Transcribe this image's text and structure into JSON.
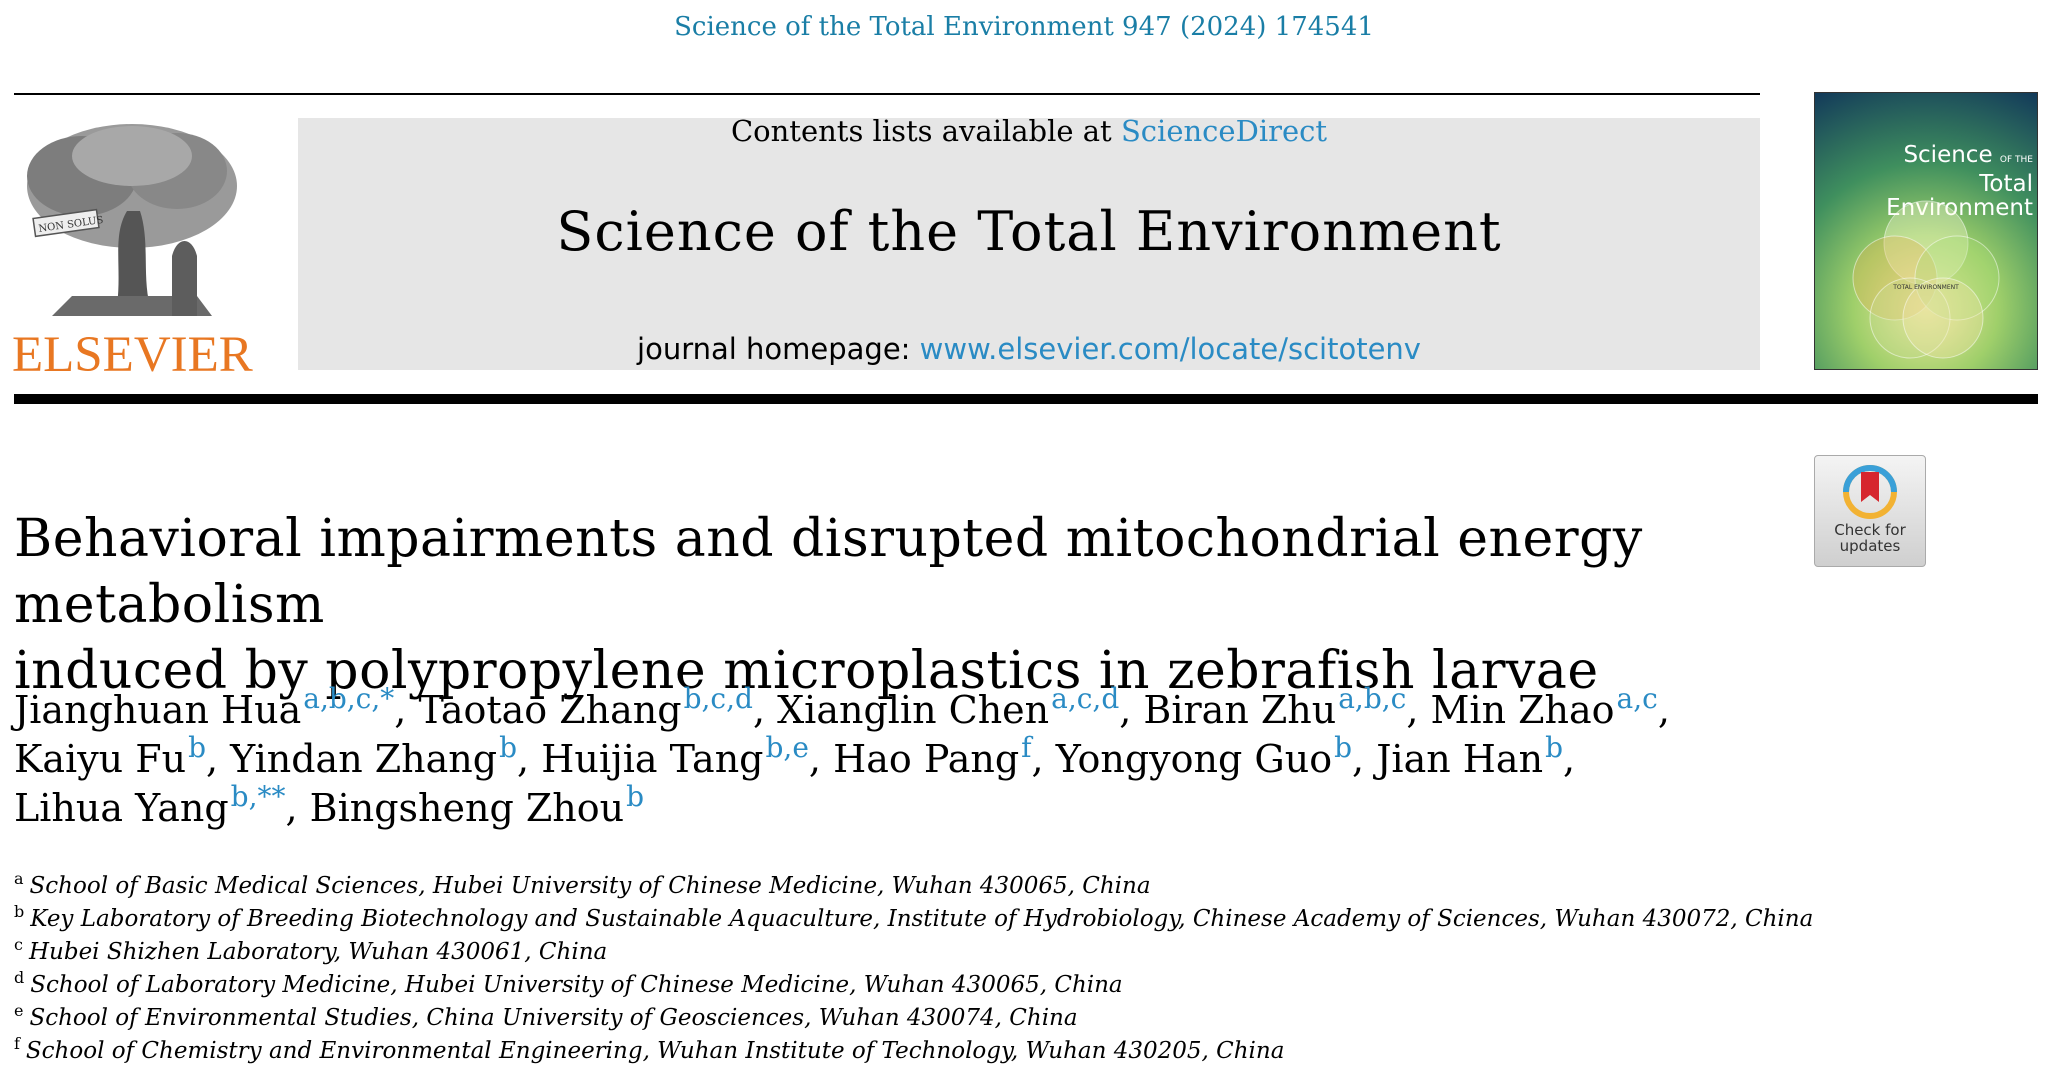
{
  "citation": "Science of the Total Environment 947 (2024) 174541",
  "publisher": {
    "name": "ELSEVIER",
    "logo_motto": "NON SOLUS"
  },
  "masthead": {
    "contents_prefix": "Contents lists available at ",
    "contents_link": "ScienceDirect",
    "journal_title": "Science of the Total Environment",
    "homepage_prefix": "journal homepage: ",
    "homepage_link": "www.elsevier.com/locate/scitotenv"
  },
  "cover": {
    "title_line1": "Science",
    "title_of_the": "OF THE",
    "title_line2": "Total Environment",
    "center_label": "TOTAL ENVIRONMENT"
  },
  "check_updates": {
    "line1": "Check for",
    "line2": "updates"
  },
  "article": {
    "title_lines": [
      "Behavioral impairments and disrupted mitochondrial energy metabolism",
      "induced by polypropylene microplastics in zebrafish larvae"
    ]
  },
  "authors": [
    {
      "name": "Jianghuan Hua",
      "sup": "a,b,c,*"
    },
    {
      "name": "Taotao Zhang",
      "sup": "b,c,d"
    },
    {
      "name": "Xianglin Chen",
      "sup": "a,c,d"
    },
    {
      "name": "Biran Zhu",
      "sup": "a,b,c"
    },
    {
      "name": "Min Zhao",
      "sup": "a,c"
    },
    {
      "name": "Kaiyu Fu",
      "sup": "b"
    },
    {
      "name": "Yindan Zhang",
      "sup": "b"
    },
    {
      "name": "Huijia Tang",
      "sup": "b,e"
    },
    {
      "name": "Hao Pang",
      "sup": "f"
    },
    {
      "name": "Yongyong Guo",
      "sup": "b"
    },
    {
      "name": "Jian Han",
      "sup": "b"
    },
    {
      "name": "Lihua Yang",
      "sup": "b,**"
    },
    {
      "name": "Bingsheng Zhou",
      "sup": "b"
    }
  ],
  "affiliations": [
    {
      "letter": "a",
      "text": "School of Basic Medical Sciences, Hubei University of Chinese Medicine, Wuhan 430065, China"
    },
    {
      "letter": "b",
      "text": "Key Laboratory of Breeding Biotechnology and Sustainable Aquaculture, Institute of Hydrobiology, Chinese Academy of Sciences, Wuhan 430072, China"
    },
    {
      "letter": "c",
      "text": "Hubei Shizhen Laboratory, Wuhan 430061, China"
    },
    {
      "letter": "d",
      "text": "School of Laboratory Medicine, Hubei University of Chinese Medicine, Wuhan 430065, China"
    },
    {
      "letter": "e",
      "text": "School of Environmental Studies, China University of Geosciences, Wuhan 430074, China"
    },
    {
      "letter": "f",
      "text": "School of Chemistry and Environmental Engineering, Wuhan Institute of Technology, Wuhan 430205, China"
    }
  ],
  "colors": {
    "link": "#2a8bc4",
    "citation": "#1a7ea6",
    "elsevier_orange": "#e87722",
    "masthead_bg": "#e6e6e6"
  }
}
